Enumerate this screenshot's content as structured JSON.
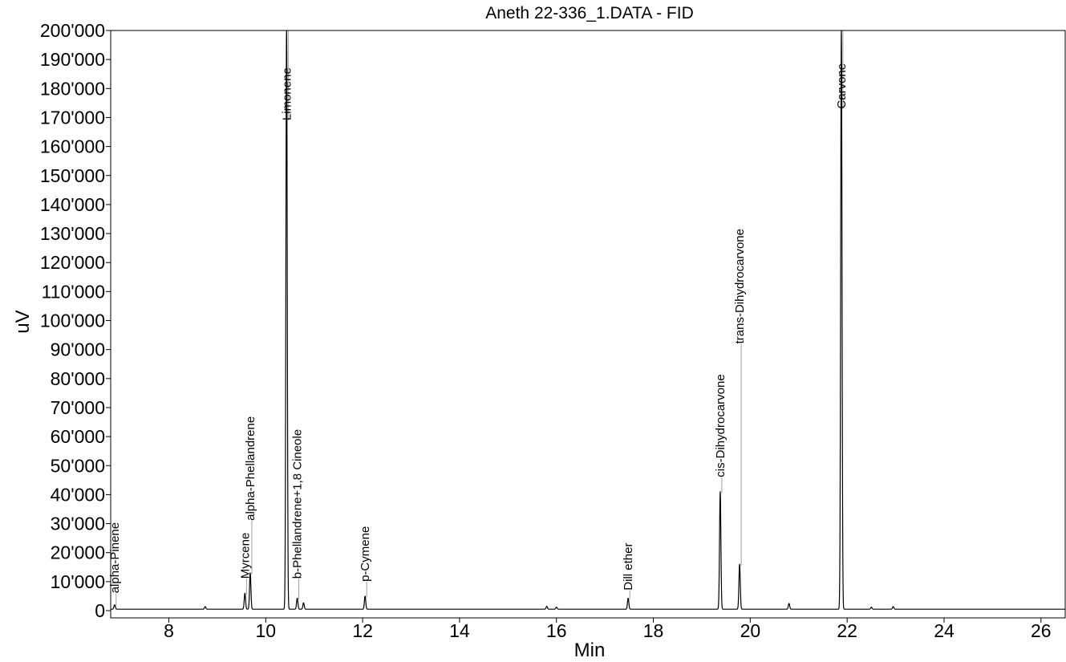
{
  "chart_data": {
    "type": "line",
    "title": "Aneth 22-336_1.DATA - FID",
    "xlabel": "Min",
    "ylabel": "uV",
    "xlim": [
      6.8,
      26.5
    ],
    "ylim": [
      0,
      200000
    ],
    "x_ticks": [
      8,
      10,
      12,
      14,
      16,
      18,
      20,
      22,
      24,
      26
    ],
    "x_tick_labels": [
      "8",
      "10",
      "12",
      "14",
      "16",
      "18",
      "20",
      "22",
      "24",
      "26"
    ],
    "y_ticks": [
      0,
      10000,
      20000,
      30000,
      40000,
      50000,
      60000,
      70000,
      80000,
      90000,
      100000,
      110000,
      120000,
      130000,
      140000,
      150000,
      160000,
      170000,
      180000,
      190000,
      200000
    ],
    "y_tick_labels": [
      "0",
      "10'000",
      "20'000",
      "30'000",
      "40'000",
      "50'000",
      "60'000",
      "70'000",
      "80'000",
      "90'000",
      "100'000",
      "110'000",
      "120'000",
      "130'000",
      "140'000",
      "150'000",
      "160'000",
      "170'000",
      "180'000",
      "190'000",
      "200'000"
    ],
    "grid": false,
    "baseline": 500,
    "line_color": "#000000",
    "peaks": [
      {
        "rt": 6.88,
        "height": 1500,
        "name": "alpha-Pinene",
        "label_y": 6000
      },
      {
        "rt": 8.75,
        "height": 900
      },
      {
        "rt": 9.57,
        "height": 5500,
        "name": "Myrcene",
        "label_y": 11000
      },
      {
        "rt": 9.68,
        "height": 12500,
        "name": "alpha-Phellandrene",
        "label_y": 31000
      },
      {
        "rt": 10.43,
        "height": 200000,
        "name": "Limonene",
        "label_y": 169000
      },
      {
        "rt": 10.65,
        "height": 3800,
        "name": "b-Phellandrene+1,8 Cineole",
        "label_y": 11000
      },
      {
        "rt": 10.78,
        "height": 2200
      },
      {
        "rt": 12.05,
        "height": 4500,
        "name": "p-Cymene",
        "label_y": 10000
      },
      {
        "rt": 15.8,
        "height": 1000
      },
      {
        "rt": 16.0,
        "height": 700
      },
      {
        "rt": 17.48,
        "height": 3800,
        "name": "Dill ether",
        "label_y": 7000
      },
      {
        "rt": 19.38,
        "height": 40500,
        "name": "cis-Dihydrocarvone",
        "label_y": 46000
      },
      {
        "rt": 19.78,
        "height": 15500,
        "name": "trans-Dihydrocarvone",
        "label_y": 92000
      },
      {
        "rt": 20.8,
        "height": 2000
      },
      {
        "rt": 21.88,
        "height": 200000,
        "name": "Carvone",
        "label_y": 173000
      },
      {
        "rt": 22.5,
        "height": 700
      },
      {
        "rt": 22.95,
        "height": 900
      }
    ]
  }
}
